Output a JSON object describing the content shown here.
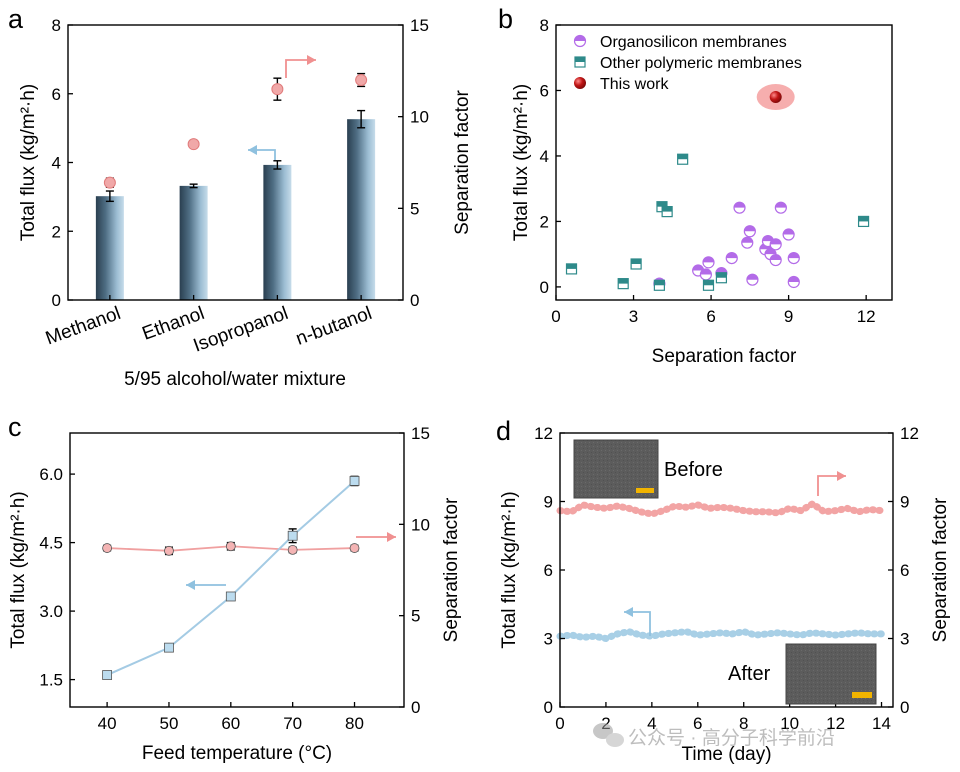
{
  "figure": {
    "watermark": "公众号 · 高分子科学前沿",
    "inset_before": "Before",
    "inset_after": "After"
  },
  "chart_data": [
    {
      "panel": "a",
      "type": "bar",
      "title": "",
      "xlabel": "5/95 alcohol/water mixture",
      "ylabel": "Total flux (kg/m²·h)",
      "y2label": "Separation factor",
      "categories": [
        "Methanol",
        "Ethanol",
        "Isopropanol",
        "n-butanol"
      ],
      "ylim": [
        0,
        8
      ],
      "yticks": [
        "0",
        "2",
        "4",
        "6",
        "8"
      ],
      "y2lim": [
        0,
        15
      ],
      "y2ticks": [
        "0",
        "5",
        "10",
        "15"
      ],
      "series": [
        {
          "name": "Total flux",
          "axis": "left",
          "kind": "bar",
          "values": [
            3.02,
            3.32,
            3.93,
            5.26
          ],
          "errors": [
            0.15,
            0.05,
            0.12,
            0.25
          ],
          "color": "#3f5e74"
        },
        {
          "name": "Separation factor",
          "axis": "right",
          "kind": "point",
          "values": [
            6.4,
            8.5,
            11.5,
            12.0
          ],
          "errors": [
            0.25,
            0.2,
            0.6,
            0.35
          ],
          "color": "#f0a8a8"
        }
      ],
      "arrows": [
        {
          "direction": "right",
          "series": "Separation factor",
          "color": "#f09090"
        },
        {
          "direction": "left",
          "series": "Total flux",
          "color": "#8fc1df"
        }
      ]
    },
    {
      "panel": "b",
      "type": "scatter",
      "xlabel": "Separation factor",
      "ylabel": "Total flux (kg/m²·h)",
      "xlim": [
        0,
        13
      ],
      "xticks": [
        "0",
        "3",
        "6",
        "9",
        "12"
      ],
      "ylim": [
        -0.4,
        8
      ],
      "yticks": [
        "0",
        "2",
        "4",
        "6",
        "8"
      ],
      "series": [
        {
          "name": "Organosilicon membranes",
          "color": "#b36be8",
          "points": [
            [
              4.0,
              0.1
            ],
            [
              5.5,
              0.5
            ],
            [
              5.8,
              0.38
            ],
            [
              5.9,
              0.75
            ],
            [
              6.4,
              0.42
            ],
            [
              6.8,
              0.88
            ],
            [
              7.1,
              2.42
            ],
            [
              7.4,
              1.35
            ],
            [
              7.5,
              1.7
            ],
            [
              7.6,
              0.22
            ],
            [
              8.1,
              1.15
            ],
            [
              8.2,
              1.4
            ],
            [
              8.3,
              1.0
            ],
            [
              8.5,
              1.3
            ],
            [
              8.5,
              0.82
            ],
            [
              8.7,
              2.42
            ],
            [
              9.0,
              1.6
            ],
            [
              9.2,
              0.88
            ],
            [
              9.2,
              0.15
            ]
          ]
        },
        {
          "name": "Other polymeric membranes",
          "color": "#2e8a8a",
          "points": [
            [
              0.6,
              0.55
            ],
            [
              2.6,
              0.1
            ],
            [
              3.1,
              0.7
            ],
            [
              4.0,
              0.05
            ],
            [
              4.1,
              2.45
            ],
            [
              4.3,
              2.3
            ],
            [
              4.9,
              3.9
            ],
            [
              5.9,
              0.05
            ],
            [
              6.4,
              0.28
            ],
            [
              11.9,
              2.0
            ]
          ]
        },
        {
          "name": "This work",
          "color": "#b01818",
          "points": [
            [
              8.5,
              5.8
            ]
          ]
        }
      ]
    },
    {
      "panel": "c",
      "type": "line",
      "xlabel": "Feed temperature (°C)",
      "ylabel": "Total flux (kg/m²·h)",
      "y2label": "Separation factor",
      "x": [
        40,
        50,
        60,
        70,
        80
      ],
      "xlim": [
        34,
        88
      ],
      "xticks": [
        "40",
        "50",
        "60",
        "70",
        "80"
      ],
      "ylim": [
        0.9,
        6.9
      ],
      "yticks": [
        "1.5",
        "3.0",
        "4.5",
        "6.0"
      ],
      "y2lim": [
        0,
        15
      ],
      "y2ticks": [
        "0",
        "5",
        "10",
        "15"
      ],
      "series": [
        {
          "name": "Total flux",
          "axis": "left",
          "values": [
            1.6,
            2.2,
            3.32,
            4.65,
            5.85
          ],
          "errors": [
            0.08,
            0.05,
            0.05,
            0.15,
            0.1
          ],
          "color": "#a4cbe4"
        },
        {
          "name": "Separation factor",
          "axis": "right",
          "values": [
            8.7,
            8.55,
            8.8,
            8.6,
            8.7
          ],
          "errors": [
            0.15,
            0.2,
            0.2,
            0.15,
            0.15
          ],
          "color": "#f0a0a0"
        }
      ],
      "arrows": [
        {
          "direction": "right",
          "series": "Separation factor",
          "color": "#f09090"
        },
        {
          "direction": "left",
          "series": "Total flux",
          "color": "#8fc1df"
        }
      ]
    },
    {
      "panel": "d",
      "type": "line",
      "xlabel": "Time (day)",
      "ylabel": "Total flux (kg/m²·h)",
      "y2label": "Separation factor",
      "xlim": [
        0,
        14.5
      ],
      "xticks": [
        "0",
        "2",
        "4",
        "6",
        "8",
        "10",
        "12",
        "14"
      ],
      "ylim": [
        0,
        12
      ],
      "yticks": [
        "0",
        "3",
        "6",
        "9",
        "12"
      ],
      "y2lim": [
        0,
        12
      ],
      "y2ticks": [
        "0",
        "3",
        "6",
        "9",
        "12"
      ],
      "x": [
        0,
        0.5,
        1,
        1.5,
        2,
        2.5,
        3,
        3.5,
        4,
        4.5,
        5,
        5.5,
        6,
        6.5,
        7,
        7.5,
        8,
        8.5,
        9,
        9.5,
        10,
        10.5,
        11,
        11.5,
        12,
        12.5,
        13,
        13.5,
        14
      ],
      "series": [
        {
          "name": "Separation factor",
          "axis": "right",
          "color": "#f2a4a4",
          "values": [
            8.6,
            8.55,
            8.85,
            8.75,
            8.7,
            8.8,
            8.7,
            8.55,
            8.45,
            8.6,
            8.8,
            8.75,
            8.85,
            8.7,
            8.75,
            8.7,
            8.6,
            8.55,
            8.55,
            8.5,
            8.7,
            8.6,
            8.9,
            8.55,
            8.6,
            8.7,
            8.55,
            8.65,
            8.6
          ]
        },
        {
          "name": "Total flux",
          "axis": "left",
          "color": "#a8cfe6",
          "values": [
            3.1,
            3.15,
            3.05,
            3.1,
            3.0,
            3.2,
            3.3,
            3.15,
            3.1,
            3.2,
            3.25,
            3.3,
            3.15,
            3.2,
            3.25,
            3.2,
            3.3,
            3.15,
            3.2,
            3.25,
            3.2,
            3.15,
            3.25,
            3.2,
            3.15,
            3.2,
            3.25,
            3.2,
            3.2
          ]
        }
      ],
      "arrows": [
        {
          "direction": "right",
          "series": "Separation factor",
          "color": "#f09090"
        },
        {
          "direction": "left",
          "series": "Total flux",
          "color": "#8fc1df"
        }
      ]
    }
  ]
}
